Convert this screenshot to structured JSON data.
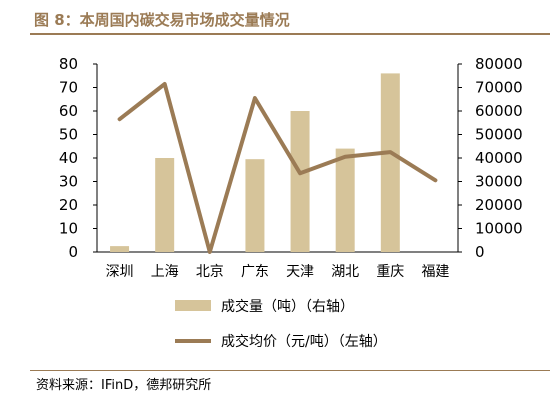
{
  "title": "图 8：本周国内碳交易市场成交量情况",
  "source": "资料来源：IFinD，德邦研究所",
  "colors": {
    "bar": "#D6C49A",
    "line": "#9B7B55",
    "accent": "#9B7B55"
  },
  "chart_data": {
    "type": "bar+line",
    "title": "图 8：本周国内碳交易市场成交量情况",
    "categories": [
      "深圳",
      "上海",
      "北京",
      "广东",
      "天津",
      "湖北",
      "重庆",
      "福建"
    ],
    "series": [
      {
        "name": "成交量（吨）（右轴）",
        "type": "bar",
        "axis": "right",
        "values": [
          2500,
          40000,
          0,
          39500,
          60000,
          44000,
          76000,
          0
        ]
      },
      {
        "name": "成交均价（元/吨）（左轴）",
        "type": "line",
        "axis": "left",
        "values": [
          56.5,
          71.5,
          0,
          65.5,
          33.5,
          40.5,
          42.5,
          30.5
        ]
      }
    ],
    "y_left": {
      "range": [
        0,
        80
      ],
      "ticks": [
        "0",
        "10",
        "20",
        "30",
        "40",
        "50",
        "60",
        "70",
        "80"
      ]
    },
    "y_right": {
      "range": [
        0,
        80000
      ],
      "ticks": [
        "0",
        "10000",
        "20000",
        "30000",
        "40000",
        "50000",
        "60000",
        "70000",
        "80000"
      ]
    },
    "grid": false,
    "legend_position": "bottom"
  }
}
